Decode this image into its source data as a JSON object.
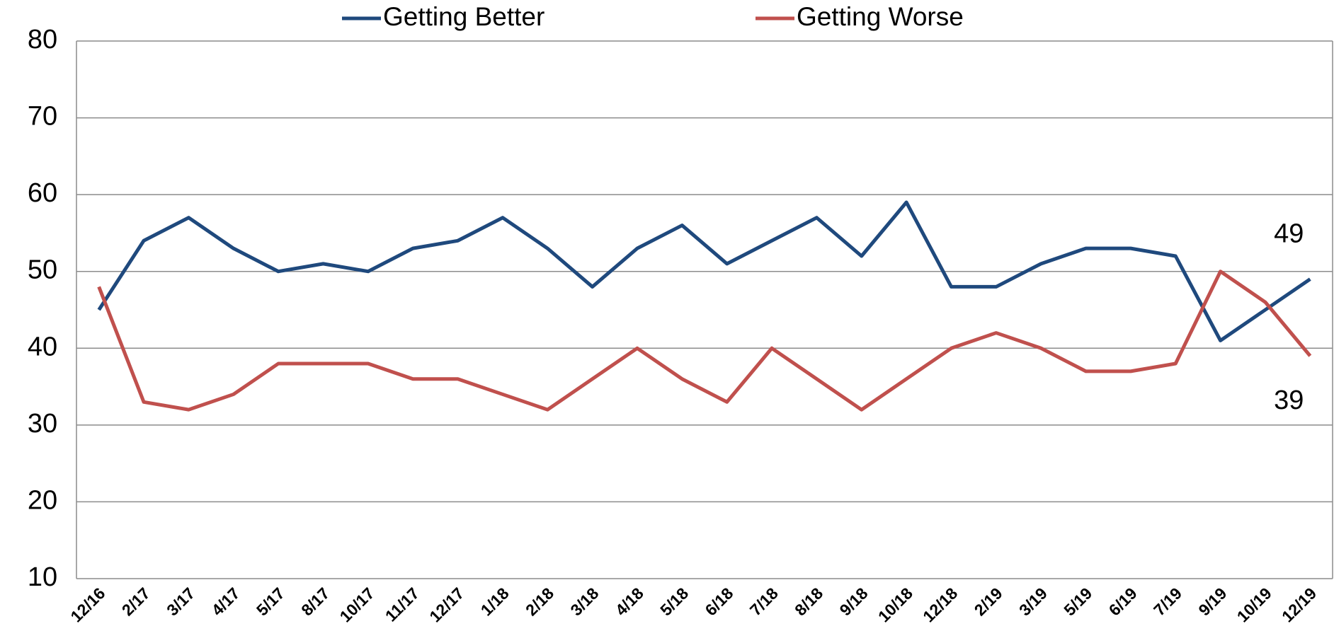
{
  "chart_data": {
    "type": "line",
    "categories": [
      "12/16",
      "2/17",
      "3/17",
      "4/17",
      "5/17",
      "8/17",
      "10/17",
      "11/17",
      "12/17",
      "1/18",
      "2/18",
      "3/18",
      "4/18",
      "5/18",
      "6/18",
      "7/18",
      "8/18",
      "9/18",
      "10/18",
      "12/18",
      "2/19",
      "3/19",
      "5/19",
      "6/19",
      "7/19",
      "9/19",
      "10/19",
      "12/19"
    ],
    "series": [
      {
        "name": "Getting Better",
        "color": "#1f497d",
        "values": [
          45,
          54,
          57,
          53,
          50,
          51,
          50,
          53,
          54,
          57,
          53,
          48,
          53,
          56,
          51,
          54,
          57,
          52,
          59,
          48,
          48,
          51,
          53,
          53,
          52,
          41,
          45,
          49
        ]
      },
      {
        "name": "Getting Worse",
        "color": "#c0504d",
        "values": [
          48,
          33,
          32,
          34,
          38,
          38,
          38,
          36,
          36,
          34,
          32,
          36,
          40,
          36,
          33,
          40,
          36,
          32,
          36,
          40,
          42,
          40,
          37,
          37,
          38,
          50,
          46,
          39
        ]
      }
    ],
    "ylim": [
      10,
      80
    ],
    "yticks": [
      10,
      20,
      30,
      40,
      50,
      60,
      70,
      80
    ],
    "grid": true,
    "legend": "top"
  }
}
